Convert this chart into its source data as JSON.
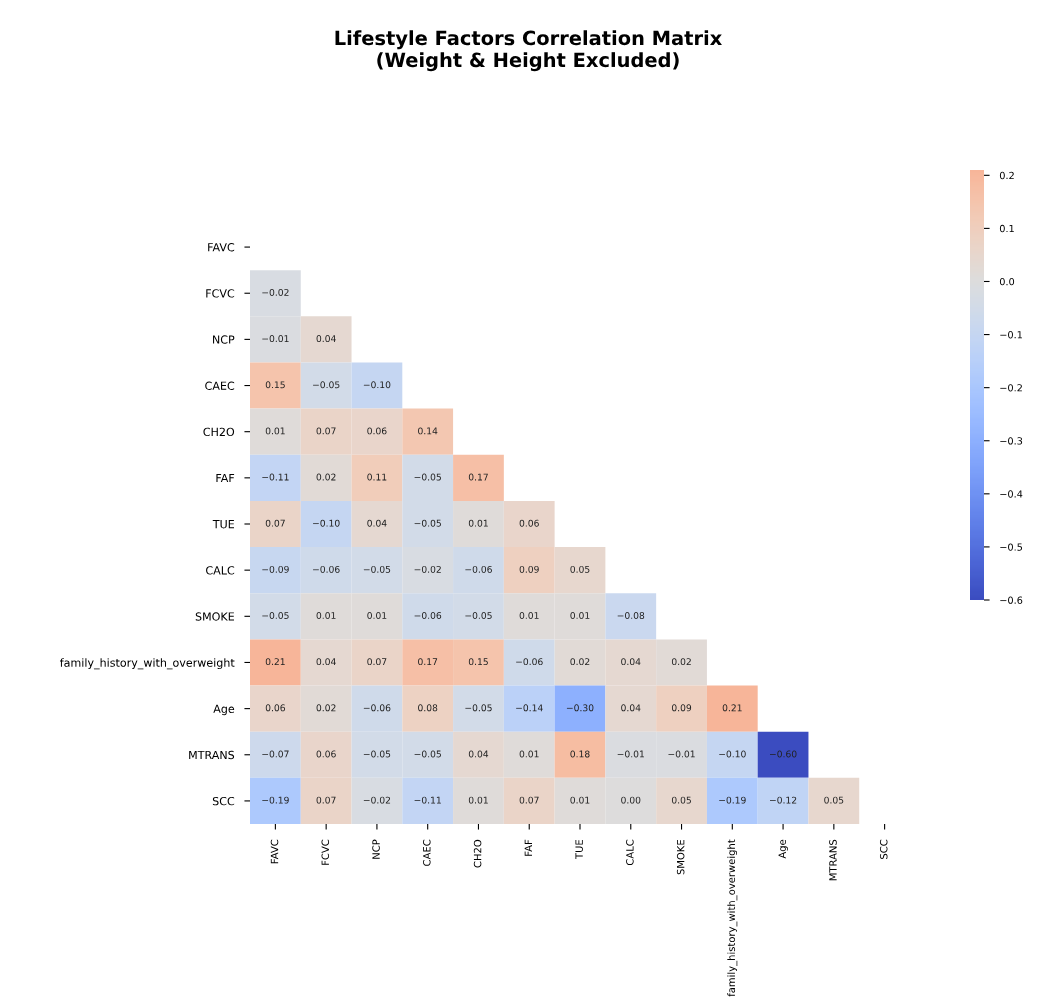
{
  "chart_data": {
    "type": "heatmap",
    "title": "Lifestyle Factors Correlation Matrix\n(Weight & Height Excluded)",
    "categories": [
      "FAVC",
      "FCVC",
      "NCP",
      "CAEC",
      "CH2O",
      "FAF",
      "TUE",
      "CALC",
      "SMOKE",
      "family_history_with_overweight",
      "Age",
      "MTRANS",
      "SCC"
    ],
    "y_categories": [
      "FAVC",
      "FCVC",
      "NCP",
      "CAEC",
      "CH2O",
      "FAF",
      "TUE",
      "CALC",
      "SMOKE",
      "family_history_with_overweight",
      "Age",
      "MTRANS",
      "SCC"
    ],
    "cells": [
      [
        null,
        null,
        null,
        null,
        null,
        null,
        null,
        null,
        null,
        null,
        null,
        null,
        null
      ],
      [
        -0.02,
        null,
        null,
        null,
        null,
        null,
        null,
        null,
        null,
        null,
        null,
        null,
        null
      ],
      [
        -0.01,
        0.04,
        null,
        null,
        null,
        null,
        null,
        null,
        null,
        null,
        null,
        null,
        null
      ],
      [
        0.15,
        -0.05,
        -0.1,
        null,
        null,
        null,
        null,
        null,
        null,
        null,
        null,
        null,
        null
      ],
      [
        0.01,
        0.07,
        0.06,
        0.14,
        null,
        null,
        null,
        null,
        null,
        null,
        null,
        null,
        null
      ],
      [
        -0.11,
        0.02,
        0.11,
        -0.05,
        0.17,
        null,
        null,
        null,
        null,
        null,
        null,
        null,
        null
      ],
      [
        0.07,
        -0.1,
        0.04,
        -0.05,
        0.01,
        0.06,
        null,
        null,
        null,
        null,
        null,
        null,
        null
      ],
      [
        -0.09,
        -0.06,
        -0.05,
        -0.02,
        -0.06,
        0.09,
        0.05,
        null,
        null,
        null,
        null,
        null,
        null
      ],
      [
        -0.05,
        0.01,
        0.01,
        -0.06,
        -0.05,
        0.01,
        0.01,
        -0.08,
        null,
        null,
        null,
        null,
        null
      ],
      [
        0.21,
        0.04,
        0.07,
        0.17,
        0.15,
        -0.06,
        0.02,
        0.04,
        0.02,
        null,
        null,
        null,
        null
      ],
      [
        0.06,
        0.02,
        -0.06,
        0.08,
        -0.05,
        -0.14,
        -0.3,
        0.04,
        0.09,
        0.21,
        null,
        null,
        null
      ],
      [
        -0.07,
        0.06,
        -0.05,
        -0.05,
        0.04,
        0.01,
        0.18,
        -0.01,
        -0.01,
        -0.1,
        -0.6,
        null,
        null
      ],
      [
        -0.19,
        0.07,
        -0.02,
        -0.11,
        0.01,
        0.07,
        0.01,
        0.0,
        0.05,
        -0.19,
        -0.12,
        0.05,
        null
      ]
    ],
    "cell_labels": [
      [
        null,
        null,
        null,
        null,
        null,
        null,
        null,
        null,
        null,
        null,
        null,
        null,
        null
      ],
      [
        "−0.02",
        null,
        null,
        null,
        null,
        null,
        null,
        null,
        null,
        null,
        null,
        null,
        null
      ],
      [
        "−0.01",
        "0.04",
        null,
        null,
        null,
        null,
        null,
        null,
        null,
        null,
        null,
        null,
        null
      ],
      [
        "0.15",
        "−0.05",
        "−0.10",
        null,
        null,
        null,
        null,
        null,
        null,
        null,
        null,
        null,
        null
      ],
      [
        "0.01",
        "0.07",
        "0.06",
        "0.14",
        null,
        null,
        null,
        null,
        null,
        null,
        null,
        null,
        null
      ],
      [
        "−0.11",
        "0.02",
        "0.11",
        "−0.05",
        "0.17",
        null,
        null,
        null,
        null,
        null,
        null,
        null,
        null
      ],
      [
        "0.07",
        "−0.10",
        "0.04",
        "−0.05",
        "0.01",
        "0.06",
        null,
        null,
        null,
        null,
        null,
        null,
        null
      ],
      [
        "−0.09",
        "−0.06",
        "−0.05",
        "−0.02",
        "−0.06",
        "0.09",
        "0.05",
        null,
        null,
        null,
        null,
        null,
        null
      ],
      [
        "−0.05",
        "0.01",
        "0.01",
        "−0.06",
        "−0.05",
        "0.01",
        "0.01",
        "−0.08",
        null,
        null,
        null,
        null,
        null
      ],
      [
        "0.21",
        "0.04",
        "0.07",
        "0.17",
        "0.15",
        "−0.06",
        "0.02",
        "0.04",
        "0.02",
        null,
        null,
        null,
        null
      ],
      [
        "0.06",
        "0.02",
        "−0.06",
        "0.08",
        "−0.05",
        "−0.14",
        "−0.30",
        "0.04",
        "0.09",
        "0.21",
        null,
        null,
        null
      ],
      [
        "−0.07",
        "0.06",
        "−0.05",
        "−0.05",
        "0.04",
        "0.01",
        "0.18",
        "−0.01",
        "−0.01",
        "−0.10",
        "−0.60",
        null,
        null
      ],
      [
        "−0.19",
        "0.07",
        "−0.02",
        "−0.11",
        "0.01",
        "0.07",
        "0.01",
        "0.00",
        "0.05",
        "−0.19",
        "−0.12",
        "0.05",
        null
      ]
    ],
    "clim": [
      -0.6,
      0.21
    ],
    "cticks": [
      {
        "value": -0.6,
        "label": "−0.6"
      },
      {
        "value": -0.5,
        "label": "−0.5"
      },
      {
        "value": -0.4,
        "label": "−0.4"
      },
      {
        "value": -0.3,
        "label": "−0.3"
      },
      {
        "value": -0.2,
        "label": "−0.2"
      },
      {
        "value": -0.1,
        "label": "−0.1"
      },
      {
        "value": 0.0,
        "label": "0.0"
      },
      {
        "value": 0.1,
        "label": "0.1"
      },
      {
        "value": 0.2,
        "label": "0.2"
      }
    ],
    "data_labels": true
  }
}
